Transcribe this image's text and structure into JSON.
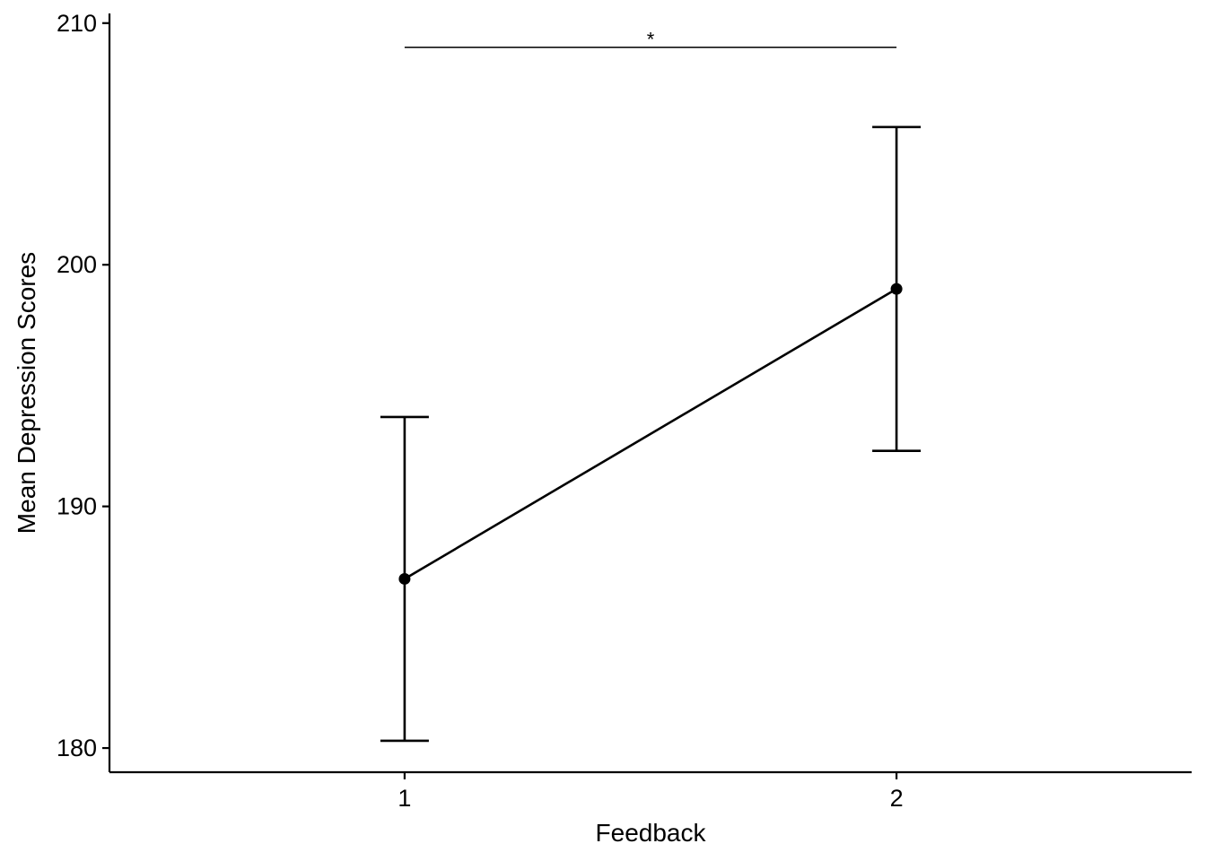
{
  "chart_data": {
    "type": "line",
    "xlabel": "Feedback",
    "ylabel": "Mean Depression Scores",
    "x_categories": [
      "1",
      "2"
    ],
    "x_range": [
      0.4,
      2.6
    ],
    "ylim": [
      179,
      210.4
    ],
    "y_ticks": [
      180,
      190,
      200,
      210
    ],
    "series": [
      {
        "points": [
          {
            "x": "1",
            "y": 187,
            "error_low": 180.3,
            "error_high": 193.7
          },
          {
            "x": "2",
            "y": 199,
            "error_low": 192.3,
            "error_high": 205.7
          }
        ]
      }
    ],
    "annotations": [
      {
        "type": "significance",
        "from": "1",
        "to": "2",
        "y": 209,
        "label": "*"
      }
    ],
    "grid": false,
    "colors": {
      "line": "#000000",
      "points": "#000000",
      "axes": "#000000"
    }
  }
}
